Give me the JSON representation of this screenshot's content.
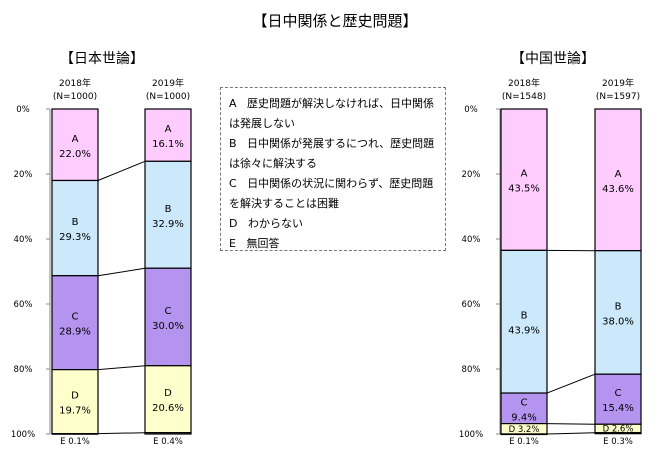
{
  "title": "【日中関係と歴史問題】",
  "legend_items": [
    {
      "key": "A",
      "text": "歴史問題が解決しなければ、日中関係は発展しない"
    },
    {
      "key": "B",
      "text": "日中関係が発展するにつれ、歴史問題は徐々に解決する"
    },
    {
      "key": "C",
      "text": "日中関係の状況に関わらず、歴史問題を解決することは困難"
    },
    {
      "key": "D",
      "text": "わからない"
    },
    {
      "key": "E",
      "text": "無回答"
    }
  ],
  "colors": {
    "A": "#ffccff",
    "B": "#cce8fb",
    "C": "#b594f0",
    "D": "#ffffcc",
    "E": "#ffffcc"
  },
  "chart_data": [
    {
      "type": "bar",
      "stacked": true,
      "percent": true,
      "title": "【日本世論】",
      "categories": [
        "A",
        "B",
        "C",
        "D",
        "E"
      ],
      "yticks": [
        "0%",
        "20%",
        "40%",
        "60%",
        "80%",
        "100%"
      ],
      "bars": [
        {
          "label": "2018年",
          "n": "(N=1000)",
          "values": [
            22.0,
            29.3,
            28.9,
            19.7,
            0.1
          ],
          "labels": [
            "A\n22.0%",
            "B\n29.3%",
            "C\n28.9%",
            "D\n19.7%",
            "E 0.1%"
          ]
        },
        {
          "label": "2019年",
          "n": "(N=1000)",
          "values": [
            16.1,
            32.9,
            30.0,
            20.6,
            0.4
          ],
          "labels": [
            "A\n16.1%",
            "B\n32.9%",
            "C\n30.0%",
            "D\n20.6%",
            "E 0.4%"
          ]
        }
      ]
    },
    {
      "type": "bar",
      "stacked": true,
      "percent": true,
      "title": "【中国世論】",
      "categories": [
        "A",
        "B",
        "C",
        "D",
        "E"
      ],
      "yticks": [
        "0%",
        "20%",
        "40%",
        "60%",
        "80%",
        "100%"
      ],
      "bars": [
        {
          "label": "2018年",
          "n": "(N=1548)",
          "values": [
            43.5,
            43.9,
            9.4,
            3.2,
            0.1
          ],
          "labels": [
            "A\n43.5%",
            "B\n43.9%",
            "C\n9.4%",
            "D 3.2%",
            "E 0.1%"
          ]
        },
        {
          "label": "2019年",
          "n": "(N=1597)",
          "values": [
            43.6,
            38.0,
            15.4,
            2.6,
            0.3
          ],
          "labels": [
            "A\n43.6%",
            "B\n38.0%",
            "C\n15.4%",
            "D 2.6%",
            "E 0.3%"
          ]
        }
      ]
    }
  ]
}
